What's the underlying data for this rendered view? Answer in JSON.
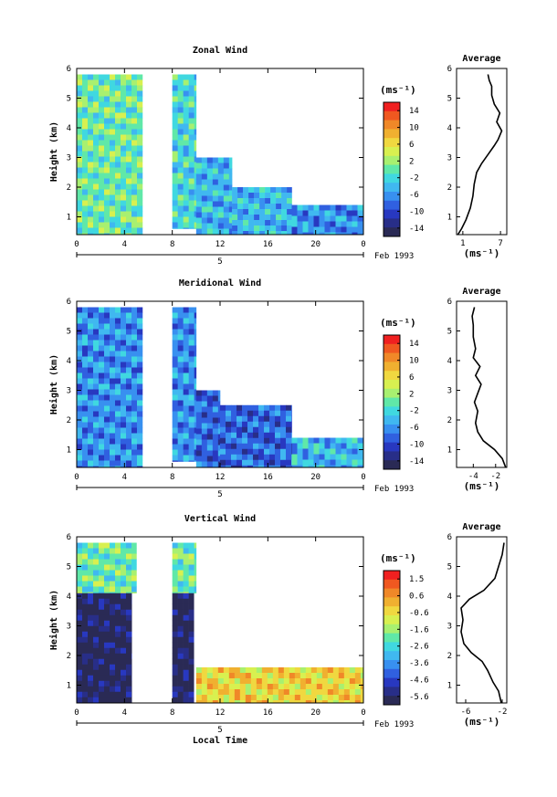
{
  "chart_data": [
    {
      "type": "heatmap",
      "title": "Zonal Wind",
      "ylabel": "Height (km)",
      "x_ticks": [
        "0",
        "4",
        "8",
        "12",
        "16",
        "20",
        "0"
      ],
      "y_ticks": [
        "1",
        "2",
        "3",
        "4",
        "5",
        "6"
      ],
      "ylim": [
        0.4,
        6
      ],
      "xlim": [
        0,
        24
      ],
      "date_tick": "5",
      "date_label": "Feb 1993",
      "colorbar": {
        "title": "(ms⁻¹)",
        "ticks": [
          "14",
          "10",
          "6",
          "2",
          "-2",
          "-6",
          "-10",
          "-14"
        ],
        "range": [
          -16,
          16
        ],
        "colors": [
          "#f02020",
          "#f05820",
          "#f08828",
          "#f0b030",
          "#f0d840",
          "#d8f050",
          "#a8f070",
          "#60e8a8",
          "#40d8e0",
          "#40b8f0",
          "#3890f0",
          "#3060e0",
          "#2838c0",
          "#282e88",
          "#2a2a55"
        ]
      },
      "fields": [
        {
          "x": [
            0,
            5.5
          ],
          "y": [
            0.4,
            5.8
          ],
          "level": 7
        },
        {
          "x": [
            8,
            10
          ],
          "y": [
            0.6,
            5.8
          ],
          "level": 8
        },
        {
          "x": [
            10,
            13
          ],
          "y": [
            0.4,
            3.0
          ],
          "level": 9
        },
        {
          "x": [
            13,
            18
          ],
          "y": [
            0.4,
            2.0
          ],
          "level": 9
        },
        {
          "x": [
            18,
            24
          ],
          "y": [
            0.4,
            1.4
          ],
          "level": 10
        }
      ],
      "average_profile": {
        "title": "Average",
        "xlabel": "(ms⁻¹)",
        "x_ticks": [
          "1",
          "7"
        ],
        "x_tick_values": [
          1,
          7
        ],
        "xlim": [
          0,
          8
        ],
        "points": [
          [
            0.2,
            0.4
          ],
          [
            0.8,
            0.6
          ],
          [
            1.5,
            0.9
          ],
          [
            2.2,
            1.3
          ],
          [
            2.6,
            1.7
          ],
          [
            2.8,
            2.1
          ],
          [
            3.2,
            2.5
          ],
          [
            4.0,
            2.8
          ],
          [
            5.0,
            3.1
          ],
          [
            6.0,
            3.4
          ],
          [
            6.6,
            3.6
          ],
          [
            7.2,
            3.9
          ],
          [
            6.4,
            4.2
          ],
          [
            6.9,
            4.5
          ],
          [
            6.0,
            4.8
          ],
          [
            5.6,
            5.1
          ],
          [
            5.6,
            5.4
          ],
          [
            5.2,
            5.6
          ],
          [
            5.0,
            5.8
          ]
        ]
      }
    },
    {
      "type": "heatmap",
      "title": "Meridional Wind",
      "ylabel": "Height (km)",
      "x_ticks": [
        "0",
        "4",
        "8",
        "12",
        "16",
        "20",
        "0"
      ],
      "y_ticks": [
        "1",
        "2",
        "3",
        "4",
        "5",
        "6"
      ],
      "ylim": [
        0.4,
        6
      ],
      "xlim": [
        0,
        24
      ],
      "date_tick": "5",
      "date_label": "Feb 1993",
      "colorbar": {
        "title": "(ms⁻¹)",
        "ticks": [
          "14",
          "10",
          "6",
          "2",
          "-2",
          "-6",
          "-10",
          "-14"
        ],
        "range": [
          -16,
          16
        ],
        "colors": [
          "#f02020",
          "#f05820",
          "#f08828",
          "#f0b030",
          "#f0d840",
          "#d8f050",
          "#a8f070",
          "#60e8a8",
          "#40d8e0",
          "#40b8f0",
          "#3890f0",
          "#3060e0",
          "#2838c0",
          "#282e88",
          "#2a2a55"
        ]
      },
      "fields": [
        {
          "x": [
            0,
            5.5
          ],
          "y": [
            0.4,
            5.8
          ],
          "level": 10
        },
        {
          "x": [
            8,
            10
          ],
          "y": [
            0.6,
            5.8
          ],
          "level": 10
        },
        {
          "x": [
            10,
            12
          ],
          "y": [
            0.4,
            3.0
          ],
          "level": 11
        },
        {
          "x": [
            12,
            18
          ],
          "y": [
            0.4,
            2.5
          ],
          "level": 11
        },
        {
          "x": [
            18,
            24
          ],
          "y": [
            0.4,
            1.4
          ],
          "level": 9
        }
      ],
      "average_profile": {
        "title": "Average",
        "xlabel": "(ms⁻¹)",
        "x_ticks": [
          "-4",
          "-2"
        ],
        "x_tick_values": [
          -4,
          -2
        ],
        "xlim": [
          -5.5,
          -1
        ],
        "points": [
          [
            -1.1,
            0.4
          ],
          [
            -1.4,
            0.7
          ],
          [
            -2.1,
            1.0
          ],
          [
            -3.1,
            1.3
          ],
          [
            -3.6,
            1.6
          ],
          [
            -3.8,
            1.9
          ],
          [
            -3.6,
            2.3
          ],
          [
            -3.9,
            2.6
          ],
          [
            -3.6,
            2.9
          ],
          [
            -3.3,
            3.2
          ],
          [
            -3.8,
            3.5
          ],
          [
            -3.4,
            3.8
          ],
          [
            -4.0,
            4.1
          ],
          [
            -3.8,
            4.4
          ],
          [
            -4.0,
            4.8
          ],
          [
            -4.0,
            5.2
          ],
          [
            -4.1,
            5.5
          ],
          [
            -3.9,
            5.8
          ]
        ]
      }
    },
    {
      "type": "heatmap",
      "title": "Vertical Wind",
      "ylabel": "Height (km)",
      "xlabel": "Local Time",
      "x_ticks": [
        "0",
        "4",
        "8",
        "12",
        "16",
        "20",
        "0"
      ],
      "y_ticks": [
        "1",
        "2",
        "3",
        "4",
        "5",
        "6"
      ],
      "ylim": [
        0.4,
        6
      ],
      "xlim": [
        0,
        24
      ],
      "date_tick": "5",
      "date_label": "Feb 1993",
      "colorbar": {
        "title": "(ms⁻¹)",
        "ticks": [
          "1.5",
          "0.6",
          "-0.6",
          "-1.6",
          "-2.6",
          "-3.6",
          "-4.6",
          "-5.6"
        ],
        "range": [
          -6,
          2
        ],
        "colors": [
          "#f02020",
          "#f05820",
          "#f08828",
          "#f0b030",
          "#f0d840",
          "#d8f050",
          "#a8f070",
          "#60e8a8",
          "#40d8e0",
          "#40b8f0",
          "#3890f0",
          "#3060e0",
          "#2838c0",
          "#282e88",
          "#2a2a55"
        ]
      },
      "fields": [
        {
          "x": [
            0,
            5
          ],
          "y": [
            4.1,
            5.8
          ],
          "level": 7
        },
        {
          "x": [
            0,
            4.6
          ],
          "y": [
            0.4,
            4.1
          ],
          "level": 14
        },
        {
          "x": [
            8,
            10
          ],
          "y": [
            4.1,
            5.8
          ],
          "level": 7
        },
        {
          "x": [
            8,
            9.8
          ],
          "y": [
            0.4,
            4.1
          ],
          "level": 14
        },
        {
          "x": [
            10,
            24
          ],
          "y": [
            0.4,
            1.6
          ],
          "level": 4
        }
      ],
      "average_profile": {
        "title": "Average",
        "xlabel": "(ms⁻¹)",
        "x_ticks": [
          "-6",
          "-2"
        ],
        "x_tick_values": [
          -6,
          -2
        ],
        "xlim": [
          -7,
          -1.5
        ],
        "points": [
          [
            -2.1,
            0.4
          ],
          [
            -2.4,
            0.8
          ],
          [
            -3.0,
            1.1
          ],
          [
            -3.6,
            1.5
          ],
          [
            -4.2,
            1.8
          ],
          [
            -5.4,
            2.1
          ],
          [
            -6.2,
            2.4
          ],
          [
            -6.5,
            2.8
          ],
          [
            -6.3,
            3.2
          ],
          [
            -6.5,
            3.6
          ],
          [
            -5.6,
            3.9
          ],
          [
            -4.0,
            4.2
          ],
          [
            -2.8,
            4.6
          ],
          [
            -2.4,
            5.0
          ],
          [
            -2.0,
            5.4
          ],
          [
            -1.8,
            5.8
          ]
        ]
      }
    }
  ]
}
